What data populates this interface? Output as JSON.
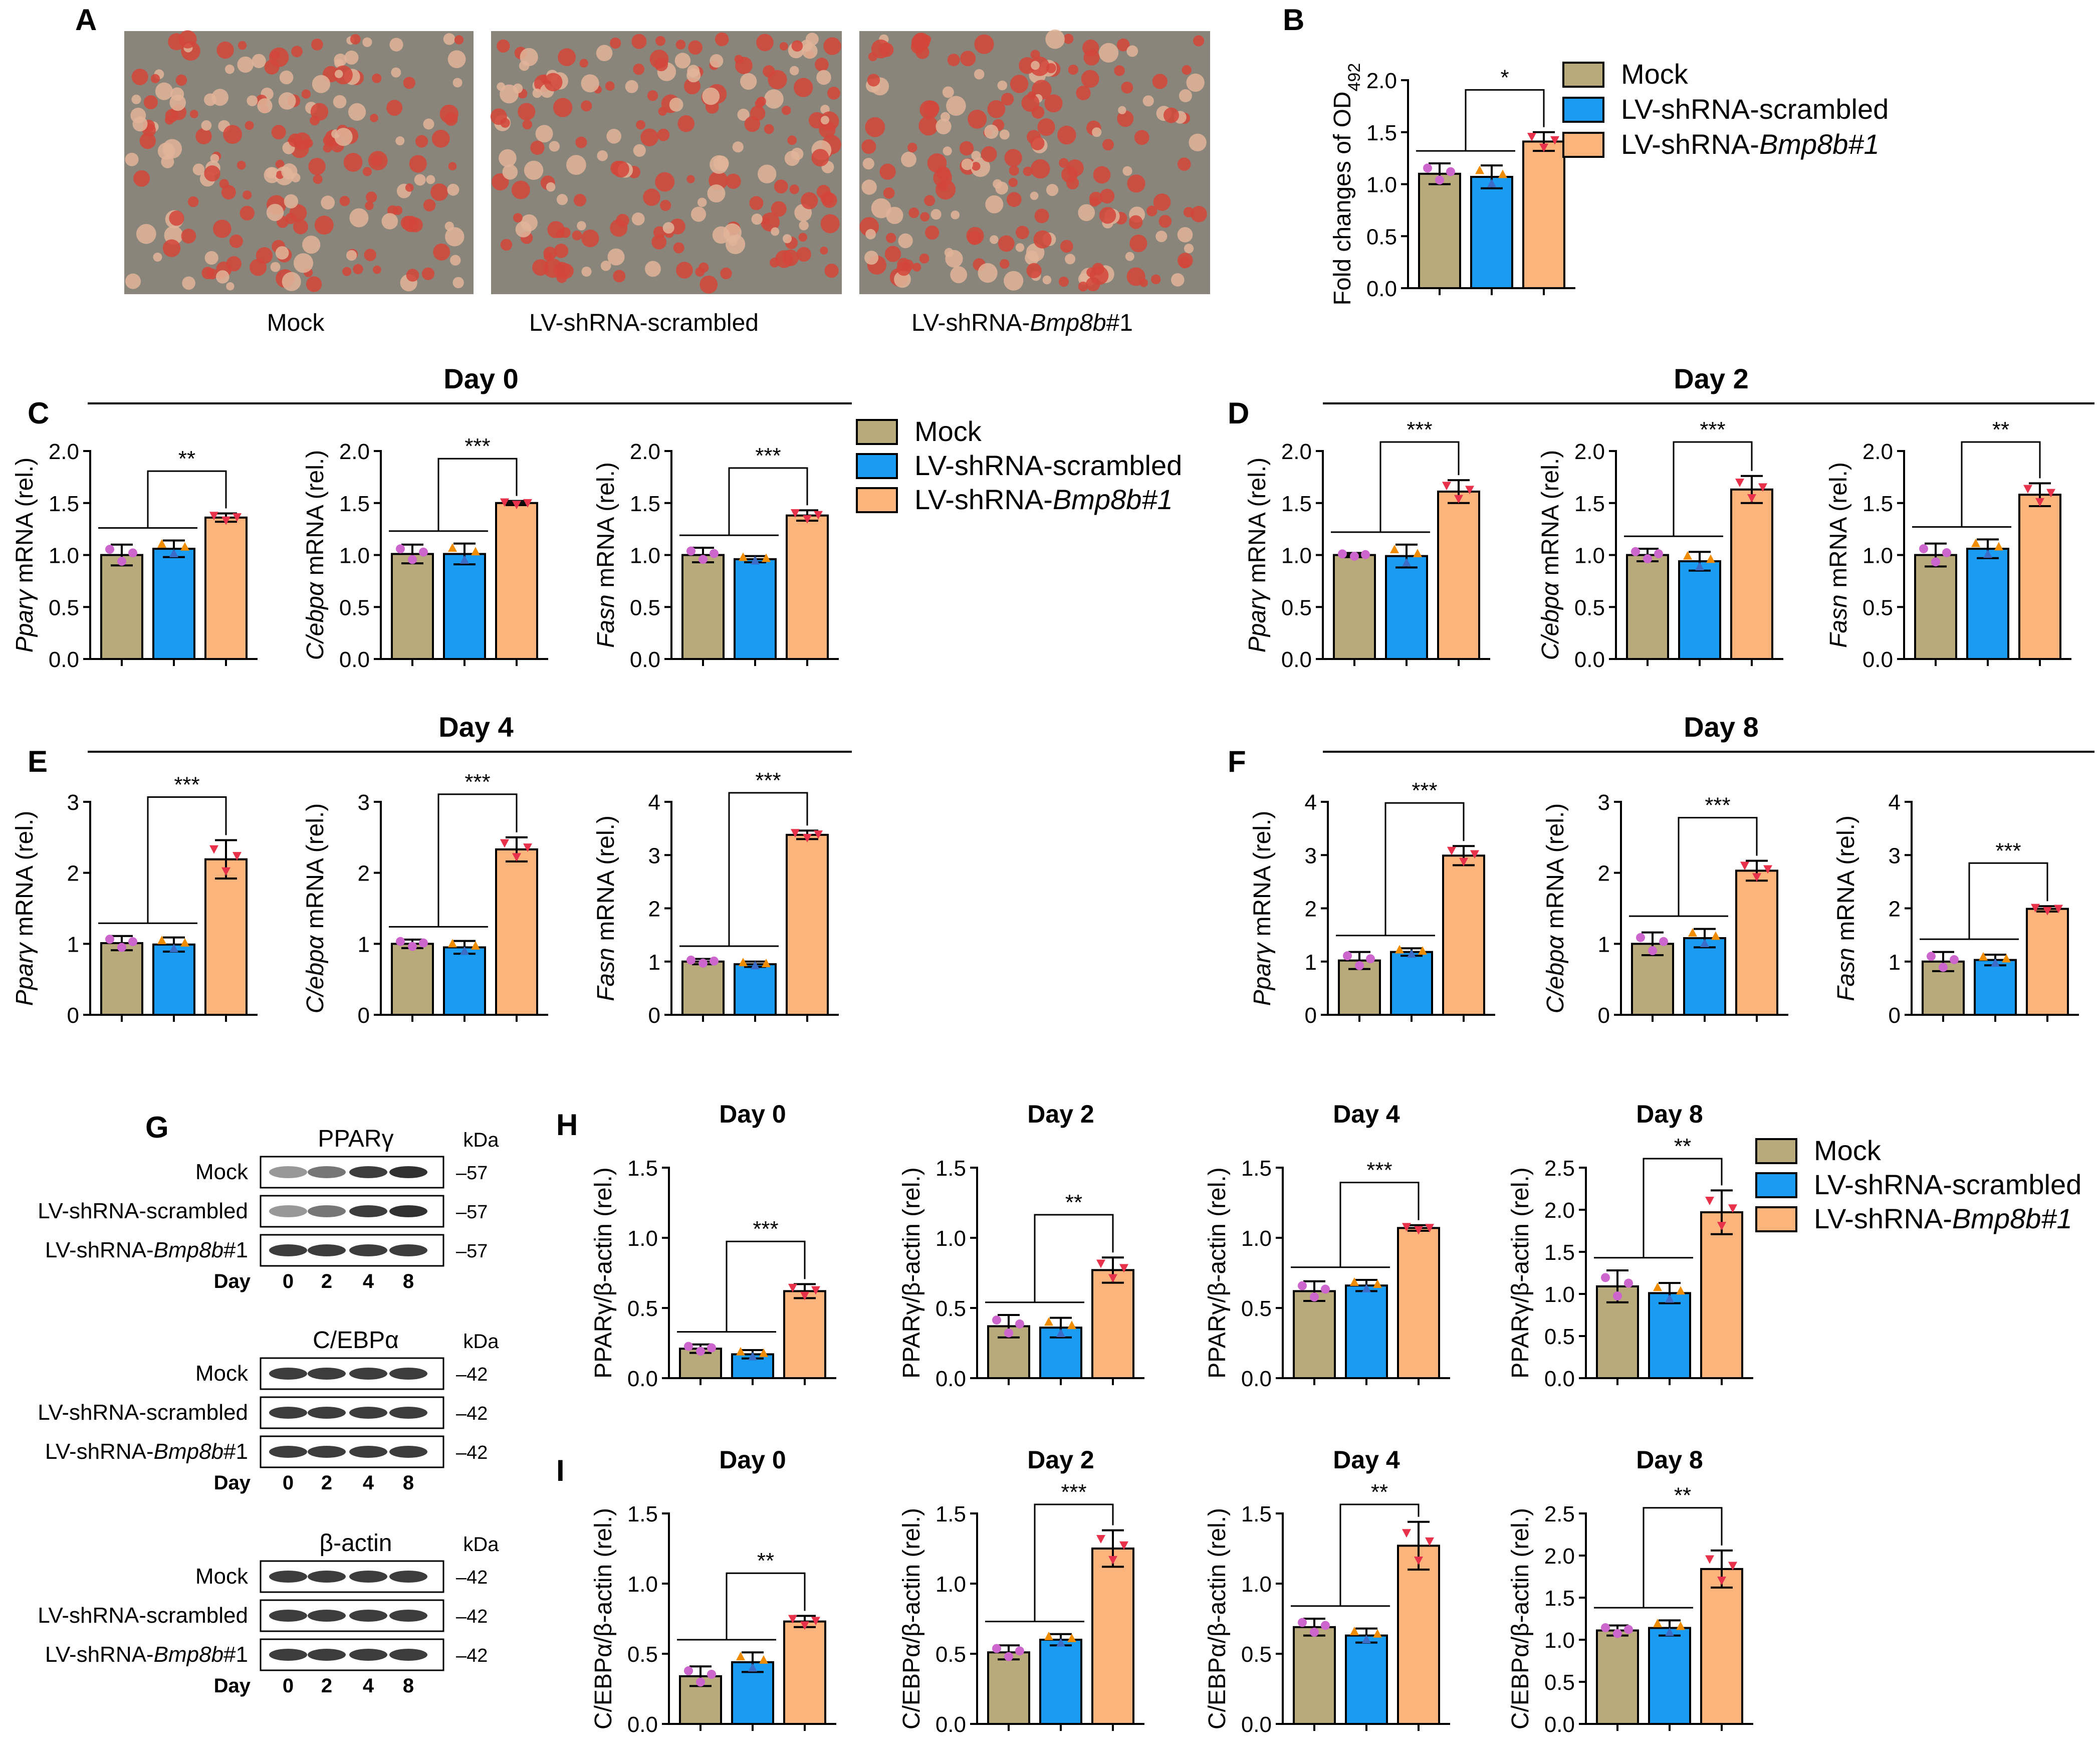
{
  "figure": {
    "colors": {
      "Mock": "#b8aa7a",
      "LV-shRNA-scrambled": "#1a9cf2",
      "LV-shRNA-Bmp8b#1": "#fbb57c",
      "dot_mock": "#cc66cc",
      "dot_scr": "#f08c00",
      "dot_kd": "#e8324b"
    },
    "legend": [
      {
        "key": "Mock",
        "label": "Mock"
      },
      {
        "key": "LV-shRNA-scrambled",
        "label": "LV-shRNA-scrambled"
      },
      {
        "key": "LV-shRNA-Bmp8b#1",
        "label": "LV-shRNA-Bmp8b#1"
      }
    ],
    "panelA": {
      "label": "A",
      "images": [
        {
          "caption": "Mock"
        },
        {
          "caption": "LV-shRNA-scrambled"
        },
        {
          "caption": "LV-shRNA-Bmp8b#1"
        }
      ]
    },
    "panelG": {
      "label": "G",
      "kda": "kDa",
      "day_label": "Day",
      "days": [
        "0",
        "2",
        "4",
        "8"
      ],
      "rows": [
        "Mock",
        "LV-shRNA-scrambled",
        "LV-shRNA-Bmp8b#1"
      ],
      "blots": [
        {
          "protein": "PPARγ",
          "marker": "–57"
        },
        {
          "protein": "C/EBPα",
          "marker": "–42"
        },
        {
          "protein": "β-actin",
          "marker": "–42"
        }
      ]
    },
    "group_titles": {
      "C": "Day 0",
      "D": "Day 2",
      "E": "Day 4",
      "F": "Day 8"
    }
  },
  "chart_data": [
    {
      "id": "B",
      "panel": "B",
      "type": "bar",
      "title": "",
      "ylabel": "Fold changes of OD492",
      "ylim": [
        0,
        2.0
      ],
      "yticks": [
        "0.0",
        "0.5",
        "1.0",
        "1.5",
        "2.0"
      ],
      "series": [
        {
          "values": [
            1.1,
            1.07,
            1.41
          ],
          "errors": [
            0.1,
            0.11,
            0.09
          ]
        }
      ],
      "sig": "*"
    },
    {
      "id": "C1",
      "panel": "C",
      "type": "bar",
      "title": "",
      "ylabel": "Pparγ mRNA (rel.)",
      "ylim": [
        0,
        2.0
      ],
      "yticks": [
        "0.0",
        "0.5",
        "1.0",
        "1.5",
        "2.0"
      ],
      "series": [
        {
          "values": [
            1.0,
            1.06,
            1.36
          ],
          "errors": [
            0.1,
            0.08,
            0.04
          ]
        }
      ],
      "sig": "**"
    },
    {
      "id": "C2",
      "panel": "",
      "type": "bar",
      "title": "",
      "ylabel": "C/ebpα mRNA (rel.)",
      "ylim": [
        0,
        2.0
      ],
      "yticks": [
        "0.0",
        "0.5",
        "1.0",
        "1.5",
        "2.0"
      ],
      "series": [
        {
          "values": [
            1.01,
            1.01,
            1.5
          ],
          "errors": [
            0.09,
            0.1,
            0.02
          ]
        }
      ],
      "sig": "***"
    },
    {
      "id": "C3",
      "panel": "",
      "type": "bar",
      "title": "",
      "ylabel": "Fasn mRNA (rel.)",
      "ylim": [
        0,
        2.0
      ],
      "yticks": [
        "0.0",
        "0.5",
        "1.0",
        "1.5",
        "2.0"
      ],
      "series": [
        {
          "values": [
            1.0,
            0.96,
            1.38
          ],
          "errors": [
            0.07,
            0.03,
            0.05
          ]
        }
      ],
      "sig": "***"
    },
    {
      "id": "D1",
      "panel": "D",
      "type": "bar",
      "title": "",
      "ylabel": "Pparγ mRNA (rel.)",
      "ylim": [
        0,
        2.0
      ],
      "yticks": [
        "0.0",
        "0.5",
        "1.0",
        "1.5",
        "2.0"
      ],
      "series": [
        {
          "values": [
            1.0,
            0.99,
            1.61
          ],
          "errors": [
            0.02,
            0.11,
            0.11
          ]
        }
      ],
      "sig": "***"
    },
    {
      "id": "D2",
      "panel": "",
      "type": "bar",
      "title": "",
      "ylabel": "C/ebpα mRNA (rel.)",
      "ylim": [
        0,
        2.0
      ],
      "yticks": [
        "0.0",
        "0.5",
        "1.0",
        "1.5",
        "2.0"
      ],
      "series": [
        {
          "values": [
            1.0,
            0.94,
            1.63
          ],
          "errors": [
            0.06,
            0.09,
            0.13
          ]
        }
      ],
      "sig": "***"
    },
    {
      "id": "D3",
      "panel": "",
      "type": "bar",
      "title": "",
      "ylabel": "Fasn mRNA (rel.)",
      "ylim": [
        0,
        2.0
      ],
      "yticks": [
        "0.0",
        "0.5",
        "1.0",
        "1.5",
        "2.0"
      ],
      "series": [
        {
          "values": [
            1.0,
            1.06,
            1.58
          ],
          "errors": [
            0.11,
            0.09,
            0.11
          ]
        }
      ],
      "sig": "**"
    },
    {
      "id": "E1",
      "panel": "E",
      "type": "bar",
      "title": "",
      "ylabel": "Pparγ mRNA (rel.)",
      "ylim": [
        0,
        3
      ],
      "yticks": [
        "0",
        "1",
        "2",
        "3"
      ],
      "series": [
        {
          "values": [
            1.01,
            0.99,
            2.19
          ],
          "errors": [
            0.1,
            0.1,
            0.27
          ]
        }
      ],
      "sig": "***"
    },
    {
      "id": "E2",
      "panel": "",
      "type": "bar",
      "title": "",
      "ylabel": "C/ebpα mRNA (rel.)",
      "ylim": [
        0,
        3
      ],
      "yticks": [
        "0",
        "1",
        "2",
        "3"
      ],
      "series": [
        {
          "values": [
            1.0,
            0.95,
            2.33
          ],
          "errors": [
            0.06,
            0.09,
            0.17
          ]
        }
      ],
      "sig": "***"
    },
    {
      "id": "E3",
      "panel": "",
      "type": "bar",
      "title": "",
      "ylabel": "Fasn mRNA (rel.)",
      "ylim": [
        0,
        4
      ],
      "yticks": [
        "0",
        "1",
        "2",
        "3",
        "4"
      ],
      "series": [
        {
          "values": [
            1.0,
            0.95,
            3.38
          ],
          "errors": [
            0.05,
            0.05,
            0.08
          ]
        }
      ],
      "sig": "***"
    },
    {
      "id": "F1",
      "panel": "F",
      "type": "bar",
      "title": "",
      "ylabel": "Pparγ mRNA (rel.)",
      "ylim": [
        0,
        4
      ],
      "yticks": [
        "0",
        "1",
        "2",
        "3",
        "4"
      ],
      "series": [
        {
          "values": [
            1.02,
            1.18,
            2.99
          ],
          "errors": [
            0.16,
            0.07,
            0.18
          ]
        }
      ],
      "sig": "***"
    },
    {
      "id": "F2",
      "panel": "",
      "type": "bar",
      "title": "",
      "ylabel": "C/ebpα mRNA (rel.)",
      "ylim": [
        0,
        3
      ],
      "yticks": [
        "0",
        "1",
        "2",
        "3"
      ],
      "series": [
        {
          "values": [
            1.0,
            1.08,
            2.03
          ],
          "errors": [
            0.16,
            0.13,
            0.14
          ]
        }
      ],
      "sig": "***"
    },
    {
      "id": "F3",
      "panel": "",
      "type": "bar",
      "title": "",
      "ylabel": "Fasn mRNA (rel.)",
      "ylim": [
        0,
        4
      ],
      "yticks": [
        "0",
        "1",
        "2",
        "3",
        "4"
      ],
      "series": [
        {
          "values": [
            1.0,
            1.03,
            1.99
          ],
          "errors": [
            0.18,
            0.1,
            0.05
          ]
        }
      ],
      "sig": "***"
    },
    {
      "id": "H1",
      "panel": "H",
      "type": "bar",
      "title": "Day 0",
      "ylabel": "PPARγ/β-actin (rel.)",
      "ylim": [
        0,
        1.5
      ],
      "yticks": [
        "0.0",
        "0.5",
        "1.0",
        "1.5"
      ],
      "series": [
        {
          "values": [
            0.21,
            0.17,
            0.62
          ],
          "errors": [
            0.03,
            0.03,
            0.05
          ]
        }
      ],
      "sig": "***"
    },
    {
      "id": "H2",
      "panel": "",
      "type": "bar",
      "title": "Day 2",
      "ylabel": "PPARγ/β-actin (rel.)",
      "ylim": [
        0,
        1.5
      ],
      "yticks": [
        "0.0",
        "0.5",
        "1.0",
        "1.5"
      ],
      "series": [
        {
          "values": [
            0.37,
            0.36,
            0.77
          ],
          "errors": [
            0.08,
            0.07,
            0.09
          ]
        }
      ],
      "sig": "**"
    },
    {
      "id": "H3",
      "panel": "",
      "type": "bar",
      "title": "Day 4",
      "ylabel": "PPARγ/β-actin (rel.)",
      "ylim": [
        0,
        1.5
      ],
      "yticks": [
        "0.0",
        "0.5",
        "1.0",
        "1.5"
      ],
      "series": [
        {
          "values": [
            0.62,
            0.66,
            1.07
          ],
          "errors": [
            0.07,
            0.04,
            0.02
          ]
        }
      ],
      "sig": "***"
    },
    {
      "id": "H4",
      "panel": "",
      "type": "bar",
      "title": "Day 8",
      "ylabel": "PPARγ/β-actin (rel.)",
      "ylim": [
        0,
        2.5
      ],
      "yticks": [
        "0.0",
        "0.5",
        "1.0",
        "1.5",
        "2.0",
        "2.5"
      ],
      "series": [
        {
          "values": [
            1.09,
            1.01,
            1.97
          ],
          "errors": [
            0.19,
            0.12,
            0.26
          ]
        }
      ],
      "sig": "**"
    },
    {
      "id": "I1",
      "panel": "I",
      "type": "bar",
      "title": "Day 0",
      "ylabel": "C/EBPα/β-actin (rel.)",
      "ylim": [
        0,
        1.5
      ],
      "yticks": [
        "0.0",
        "0.5",
        "1.0",
        "1.5"
      ],
      "series": [
        {
          "values": [
            0.34,
            0.44,
            0.73
          ],
          "errors": [
            0.07,
            0.07,
            0.04
          ]
        }
      ],
      "sig": "**"
    },
    {
      "id": "I2",
      "panel": "",
      "type": "bar",
      "title": "Day 2",
      "ylabel": "C/EBPα/β-actin (rel.)",
      "ylim": [
        0,
        1.5
      ],
      "yticks": [
        "0.0",
        "0.5",
        "1.0",
        "1.5"
      ],
      "series": [
        {
          "values": [
            0.51,
            0.6,
            1.25
          ],
          "errors": [
            0.05,
            0.04,
            0.13
          ]
        }
      ],
      "sig": "***"
    },
    {
      "id": "I3",
      "panel": "",
      "type": "bar",
      "title": "Day 4",
      "ylabel": "C/EBPα/β-actin (rel.)",
      "ylim": [
        0,
        1.5
      ],
      "yticks": [
        "0.0",
        "0.5",
        "1.0",
        "1.5"
      ],
      "series": [
        {
          "values": [
            0.69,
            0.63,
            1.27
          ],
          "errors": [
            0.06,
            0.05,
            0.17
          ]
        }
      ],
      "sig": "**"
    },
    {
      "id": "I4",
      "panel": "",
      "type": "bar",
      "title": "Day 8",
      "ylabel": "C/EBPα/β-actin (rel.)",
      "ylim": [
        0,
        2.5
      ],
      "yticks": [
        "0.0",
        "0.5",
        "1.0",
        "1.5",
        "2.0",
        "2.5"
      ],
      "series": [
        {
          "values": [
            1.11,
            1.14,
            1.84
          ],
          "errors": [
            0.06,
            0.09,
            0.22
          ]
        }
      ],
      "sig": "**"
    }
  ]
}
